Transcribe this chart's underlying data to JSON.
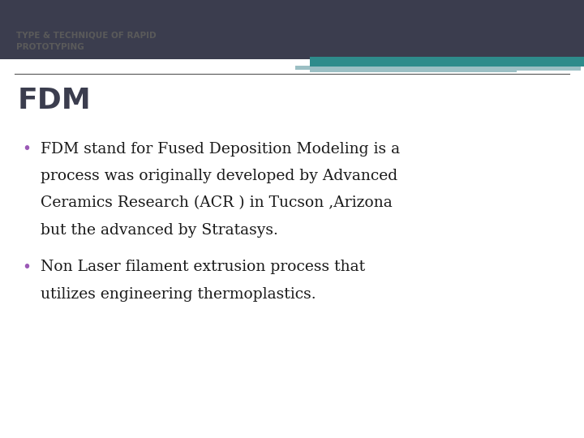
{
  "bg_color": "#ffffff",
  "header_bg_color": "#3b3d4e",
  "teal_bar_color": "#2e8b8b",
  "light_teal_color": "#9bbfc4",
  "header_title_line1": "TYPE & TECHNIQUE OF RAPID",
  "header_title_line2": "PROTOTYPING",
  "header_text_color": "#5a5a5a",
  "section_title": "FDM",
  "section_title_color": "#3b3d4e",
  "divider_color": "#555555",
  "bullet_color": "#9b59b6",
  "bullet_text_color": "#1a1a1a",
  "bullet1_line1": "FDM stand for Fused Deposition Modeling is a",
  "bullet1_line2": "process was originally developed by Advanced",
  "bullet1_line3": "Ceramics Research (ACR ) in Tucson ,Arizona",
  "bullet1_line4": "but the advanced by Stratasys.",
  "bullet2_line1": "Non Laser filament extrusion process that",
  "bullet2_line2": "utilizes engineering thermoplastics.",
  "header_font_size": 7.5,
  "section_title_font_size": 26,
  "bullet_font_size": 13.5
}
